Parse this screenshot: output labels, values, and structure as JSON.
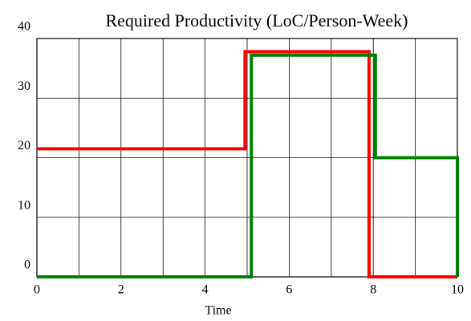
{
  "chart_data": {
    "type": "line",
    "title": "Required Productivity (LoC/Person-Week)",
    "xlabel": "Time",
    "xlim": [
      0,
      10
    ],
    "ylim": [
      0,
      40
    ],
    "xticks": [
      0,
      2,
      4,
      6,
      8,
      10
    ],
    "xgrid": [
      0,
      1,
      2,
      3,
      4,
      5,
      6,
      7,
      8,
      9,
      10
    ],
    "yticks": [
      0,
      10,
      20,
      30,
      40
    ],
    "grid": true,
    "series": [
      {
        "color": "#ff0000",
        "x": [
          0,
          4.95,
          4.95,
          7.9,
          7.9,
          10
        ],
        "values": [
          21.5,
          21.5,
          37.8,
          37.8,
          0,
          0
        ]
      },
      {
        "color": "#008000",
        "x": [
          0,
          5.1,
          5.1,
          8.05,
          8.05,
          10,
          10
        ],
        "values": [
          0,
          0,
          37.2,
          37.2,
          20,
          20,
          0
        ]
      }
    ]
  }
}
